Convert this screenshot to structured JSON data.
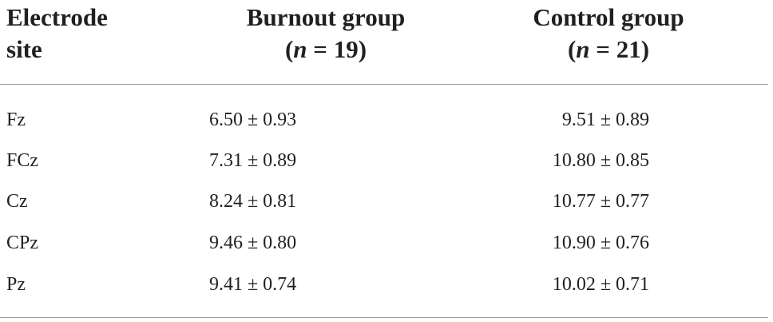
{
  "table": {
    "header": [
      {
        "lines": [
          [
            "Electrode"
          ],
          [
            "site"
          ]
        ]
      },
      {
        "lines": [
          [
            "Burnout group"
          ],
          [
            "(",
            "n",
            " = 19)"
          ]
        ]
      },
      {
        "lines": [
          [
            "Control group"
          ],
          [
            "(",
            "n",
            " = 21)"
          ]
        ]
      }
    ],
    "rows": [
      [
        "Fz",
        "6.50 ± 0.93",
        "9.51 ± 0.89"
      ],
      [
        "FCz",
        "7.31 ± 0.89",
        "10.80 ± 0.85"
      ],
      [
        "Cz",
        "8.24 ± 0.81",
        "10.77 ± 0.77"
      ],
      [
        "CPz",
        "9.46 ± 0.80",
        "10.90 ± 0.76"
      ],
      [
        "Pz",
        "9.41 ± 0.74",
        "10.02 ± 0.71"
      ]
    ]
  }
}
